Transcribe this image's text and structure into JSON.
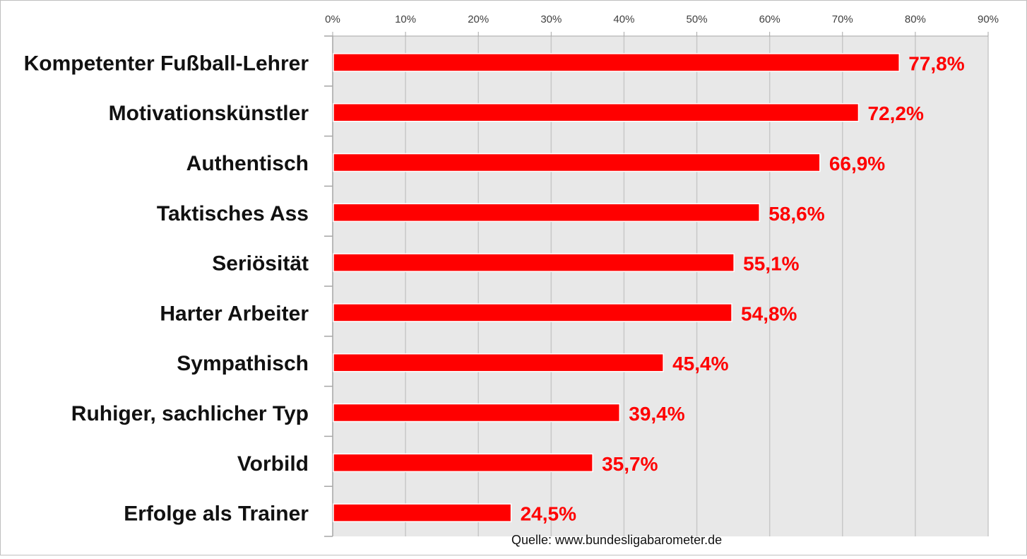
{
  "chart_data": {
    "type": "bar",
    "orientation": "horizontal",
    "categories": [
      "Kompetenter Fußball-Lehrer",
      "Motivationskünstler",
      "Authentisch",
      "Taktisches Ass",
      "Seriösität",
      "Harter Arbeiter",
      "Sympathisch",
      "Ruhiger, sachlicher Typ",
      "Vorbild",
      "Erfolge als Trainer"
    ],
    "values": [
      77.8,
      72.2,
      66.9,
      58.6,
      55.1,
      54.8,
      45.4,
      39.4,
      35.7,
      24.5
    ],
    "value_labels": [
      "77,8%",
      "72,2%",
      "66,9%",
      "58,6%",
      "55,1%",
      "54,8%",
      "45,4%",
      "39,4%",
      "35,7%",
      "24,5%"
    ],
    "xlim": [
      0,
      90
    ],
    "xticks": [
      "0%",
      "10%",
      "20%",
      "30%",
      "40%",
      "50%",
      "60%",
      "70%",
      "80%",
      "90%"
    ],
    "x_axis_position": "top",
    "grid": true,
    "bar_color": "#ff0000",
    "plot_background": "#e8e8e8",
    "label_color": "#ff0000"
  },
  "source": "Quelle: www.bundesligabarometer.de"
}
